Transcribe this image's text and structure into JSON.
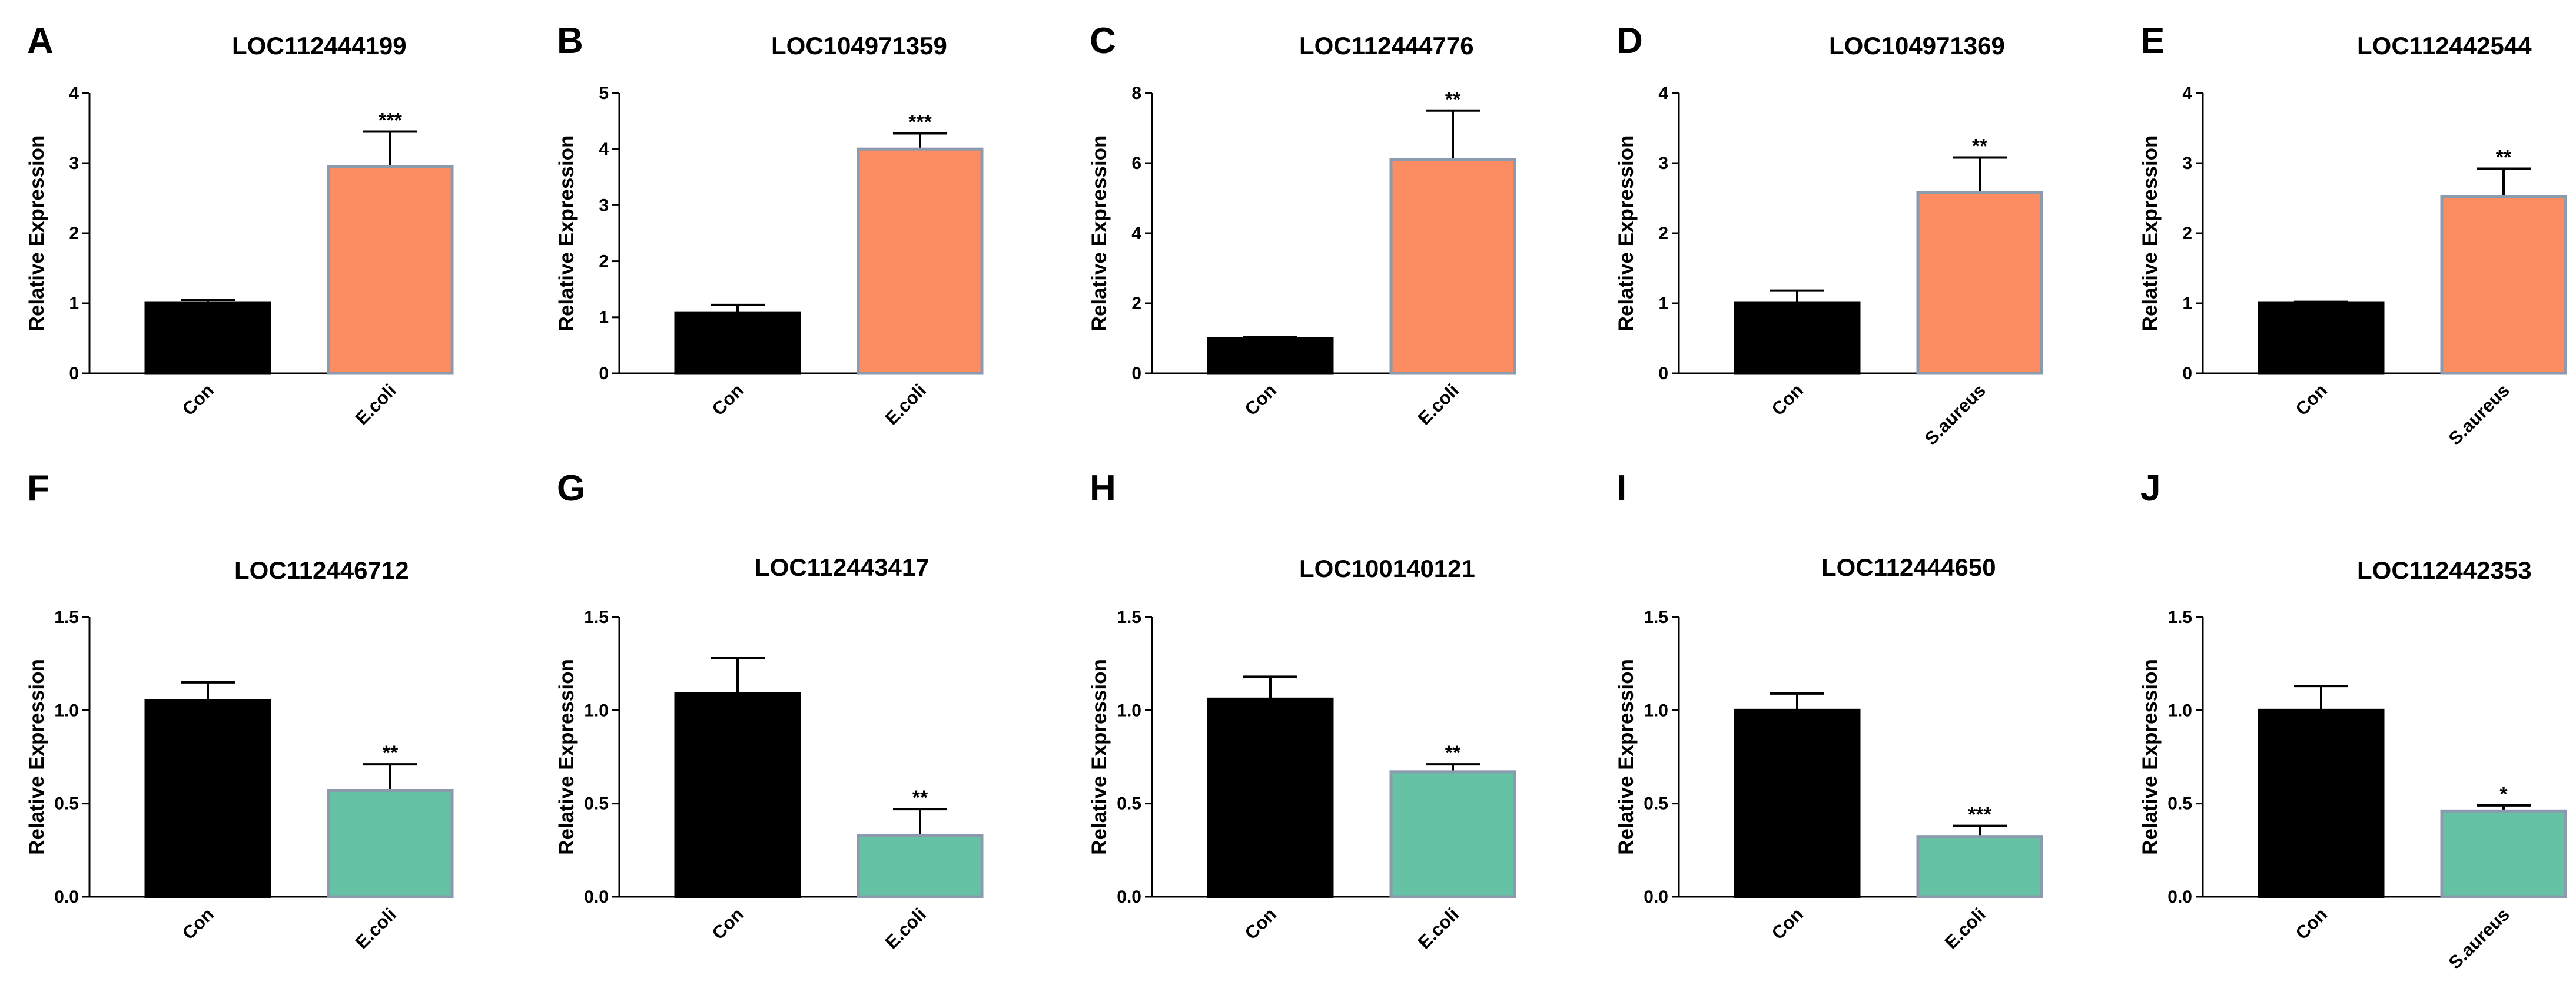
{
  "colors": {
    "control": "#000000",
    "up_treated": "#FC8D62",
    "down_treated": "#66C2A5",
    "bar_outline": "#8C9AAE"
  },
  "chart_data": [
    {
      "panel": "A",
      "type": "bar",
      "title": "LOC112444199",
      "ylabel": "Relative Expression",
      "ylim": [
        0,
        4
      ],
      "yticks": [
        "0",
        "1",
        "2",
        "3",
        "4"
      ],
      "categories": [
        "Con",
        "E.coli"
      ],
      "values": [
        1.0,
        2.95
      ],
      "errors": [
        0.05,
        0.5
      ],
      "significance": "***",
      "treated_color": "up_treated"
    },
    {
      "panel": "B",
      "type": "bar",
      "title": "LOC104971359",
      "ylabel": "Relative Expression",
      "ylim": [
        0,
        5
      ],
      "yticks": [
        "0",
        "1",
        "2",
        "3",
        "4",
        "5"
      ],
      "categories": [
        "Con",
        "E.coli"
      ],
      "values": [
        1.07,
        4.0
      ],
      "errors": [
        0.15,
        0.28
      ],
      "significance": "***",
      "treated_color": "up_treated"
    },
    {
      "panel": "C",
      "type": "bar",
      "title": "LOC112444776",
      "ylabel": "Relative Expression",
      "ylim": [
        0,
        8
      ],
      "yticks": [
        "0",
        "2",
        "4",
        "6",
        "8"
      ],
      "categories": [
        "Con",
        "E.coli"
      ],
      "values": [
        1.0,
        6.1
      ],
      "errors": [
        0.04,
        1.4
      ],
      "significance": "**",
      "treated_color": "up_treated"
    },
    {
      "panel": "D",
      "type": "bar",
      "title": "LOC104971369",
      "ylabel": "Relative Expression",
      "ylim": [
        0,
        4
      ],
      "yticks": [
        "0",
        "1",
        "2",
        "3",
        "4"
      ],
      "categories": [
        "Con",
        "S.aureus"
      ],
      "values": [
        1.0,
        2.58
      ],
      "errors": [
        0.18,
        0.5
      ],
      "significance": "**",
      "treated_color": "up_treated"
    },
    {
      "panel": "E",
      "type": "bar",
      "title": "LOC112442544",
      "ylabel": "Relative Expression",
      "ylim": [
        0,
        4
      ],
      "yticks": [
        "0",
        "1",
        "2",
        "3",
        "4"
      ],
      "categories": [
        "Con",
        "S.aureus"
      ],
      "values": [
        1.0,
        2.52
      ],
      "errors": [
        0.02,
        0.4
      ],
      "significance": "**",
      "treated_color": "up_treated"
    },
    {
      "panel": "F",
      "type": "bar",
      "title": "LOC112446712",
      "ylabel": "Relative Expression",
      "ylim": [
        0,
        1.5
      ],
      "yticks": [
        "0.0",
        "0.5",
        "1.0",
        "1.5"
      ],
      "categories": [
        "Con",
        "E.coli"
      ],
      "values": [
        1.05,
        0.57
      ],
      "errors": [
        0.1,
        0.14
      ],
      "significance": "**",
      "treated_color": "down_treated"
    },
    {
      "panel": "G",
      "type": "bar",
      "title": "LOC112443417",
      "ylabel": "Relative Expression",
      "ylim": [
        0,
        1.5
      ],
      "yticks": [
        "0.0",
        "0.5",
        "1.0",
        "1.5"
      ],
      "categories": [
        "Con",
        "E.coli"
      ],
      "values": [
        1.09,
        0.33
      ],
      "errors": [
        0.19,
        0.14
      ],
      "significance": "**",
      "treated_color": "down_treated"
    },
    {
      "panel": "H",
      "type": "bar",
      "title": "LOC100140121",
      "ylabel": "Relative Expression",
      "ylim": [
        0,
        1.5
      ],
      "yticks": [
        "0.0",
        "0.5",
        "1.0",
        "1.5"
      ],
      "categories": [
        "Con",
        "E.coli"
      ],
      "values": [
        1.06,
        0.67
      ],
      "errors": [
        0.12,
        0.04
      ],
      "significance": "**",
      "treated_color": "down_treated"
    },
    {
      "panel": "I",
      "type": "bar",
      "title": "LOC112444650",
      "ylabel": "Relative Expression",
      "ylim": [
        0,
        1.5
      ],
      "yticks": [
        "0.0",
        "0.5",
        "1.0",
        "1.5"
      ],
      "categories": [
        "Con",
        "E.coli"
      ],
      "values": [
        1.0,
        0.32
      ],
      "errors": [
        0.09,
        0.06
      ],
      "significance": "***",
      "treated_color": "down_treated"
    },
    {
      "panel": "J",
      "type": "bar",
      "title": "LOC112442353",
      "ylabel": "Relative Expression",
      "ylim": [
        0,
        1.5
      ],
      "yticks": [
        "0.0",
        "0.5",
        "1.0",
        "1.5"
      ],
      "categories": [
        "Con",
        "S.aureus"
      ],
      "values": [
        1.0,
        0.46
      ],
      "errors": [
        0.13,
        0.03
      ],
      "significance": "*",
      "treated_color": "down_treated"
    }
  ]
}
